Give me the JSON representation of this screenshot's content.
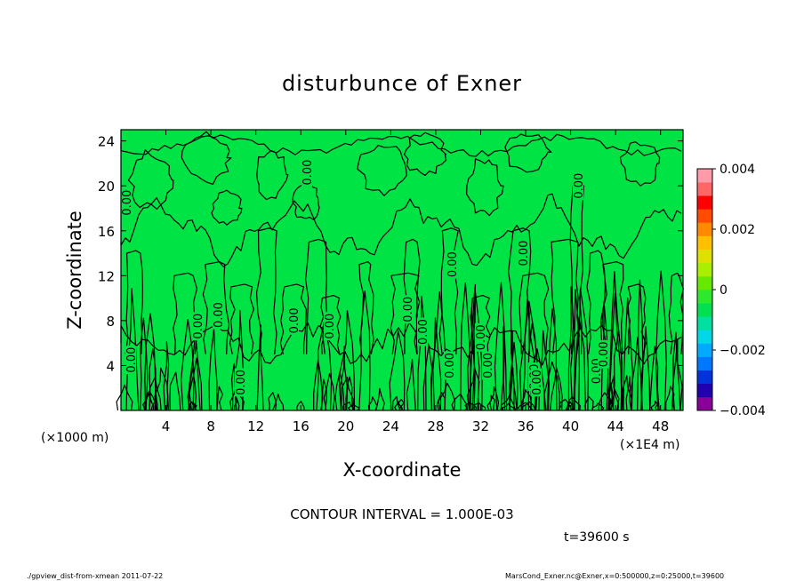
{
  "chart_data": {
    "type": "contour",
    "title": "disturbunce of Exner",
    "xlabel": "X-coordinate",
    "ylabel": "Z-coordinate",
    "x_unit_label": "(×1E4 m)",
    "z_unit_label": "(×1000 m)",
    "x_ticks": [
      4,
      8,
      12,
      16,
      20,
      24,
      28,
      32,
      36,
      40,
      44,
      48
    ],
    "z_ticks": [
      4,
      8,
      12,
      16,
      20,
      24
    ],
    "xlim": [
      0,
      50
    ],
    "zlim": [
      0,
      25
    ],
    "contour_interval_label": "CONTOUR INTERVAL = 1.000E-03",
    "contour_label": "0.00",
    "colorbar": {
      "range": [
        -0.004,
        0.004
      ],
      "tick_labels": [
        "0.004",
        "0.002",
        "0",
        "−0.002",
        "−0.004"
      ],
      "tick_values": [
        0.004,
        0.002,
        0,
        -0.002,
        -0.004
      ],
      "colors": [
        "#8a0099",
        "#2200b0",
        "#0033d9",
        "#0077ff",
        "#00aaff",
        "#00d8e8",
        "#00e0a0",
        "#00e050",
        "#2ee82e",
        "#66e800",
        "#aaee00",
        "#e0e000",
        "#ffc000",
        "#ff8a00",
        "#ff4c00",
        "#ff0000",
        "#ff6666",
        "#ff9aa8"
      ],
      "fill_value": 0,
      "fill_color": "#00e345"
    },
    "time_label": "t=39600 s"
  },
  "footer": {
    "left": "./gpview_dist-from-xmean   2011-07-22",
    "right": "MarsCond_Exner.nc@Exner,x=0:500000,z=0:25000,t=39600"
  }
}
